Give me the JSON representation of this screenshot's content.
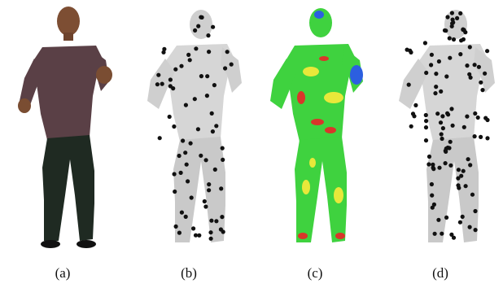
{
  "figure": {
    "panels": [
      {
        "id": "a",
        "caption": "(a)",
        "render": "photo"
      },
      {
        "id": "b",
        "caption": "(b)",
        "render": "mesh-points-sparse"
      },
      {
        "id": "c",
        "caption": "(c)",
        "render": "mesh-heatmap"
      },
      {
        "id": "d",
        "caption": "(d)",
        "render": "mesh-points-dense"
      }
    ],
    "colors": {
      "mesh_gray": "#cfcfcf",
      "point_black": "#111111",
      "heat_green": "#3fd23f",
      "heat_yellow": "#e8e83a",
      "heat_red": "#d9362a",
      "heat_blue": "#2c5fe0",
      "shirt": "#5a4046",
      "jeans": "#1f2a22",
      "skin": "#8a5a3a"
    }
  }
}
